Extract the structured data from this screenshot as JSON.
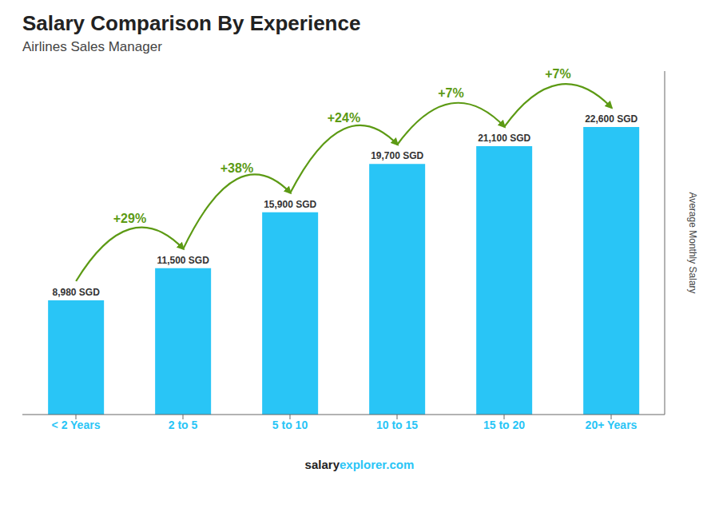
{
  "chart_data": {
    "type": "bar",
    "title": "Salary Comparison By Experience",
    "subtitle": "Airlines Sales Manager",
    "categories": [
      "< 2 Years",
      "2 to 5",
      "5 to 10",
      "10 to 15",
      "15 to 20",
      "20+ Years"
    ],
    "values": [
      8980,
      11500,
      15900,
      19700,
      21100,
      22600
    ],
    "value_labels": [
      "8,980 SGD",
      "11,500 SGD",
      "15,900 SGD",
      "19,700 SGD",
      "21,100 SGD",
      "22,600 SGD"
    ],
    "data_labels": true,
    "color": "#29c5f6",
    "ylabel": "Average Monthly Salary",
    "ylim": [
      0,
      27000
    ],
    "tick_labels": "x",
    "annotations": [
      "+29%",
      "+38%",
      "+24%",
      "+7%",
      "+7%"
    ],
    "footer": [
      "salary",
      "explorer.com"
    ]
  }
}
